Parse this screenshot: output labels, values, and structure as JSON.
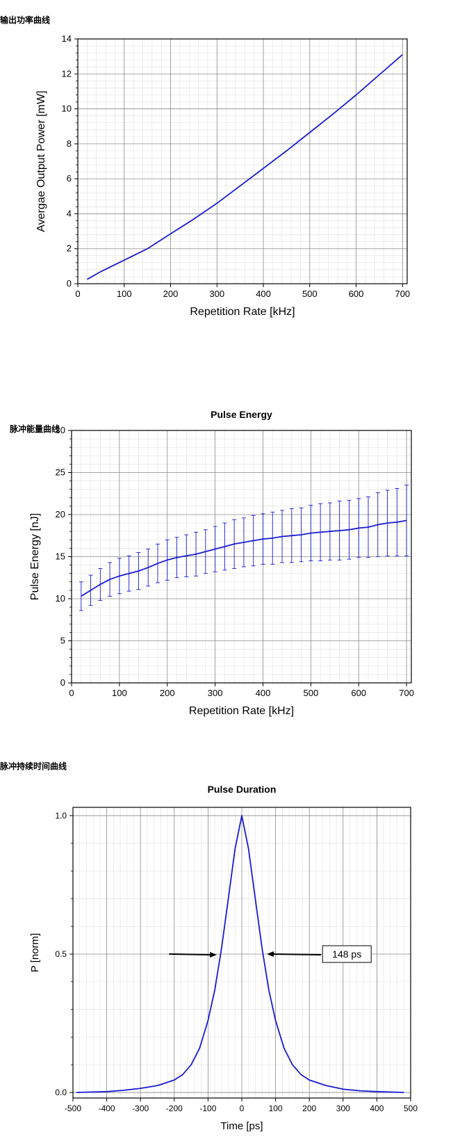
{
  "sections": {
    "power": "输出功率曲线",
    "energy": "脉冲能量曲线",
    "duration": "脉冲持续时间曲线"
  },
  "chart_data": [
    {
      "type": "line",
      "title": "",
      "xlabel": "Repetition Rate [kHz]",
      "ylabel": "Avergae Output Power [mW]",
      "xlim": [
        0,
        710
      ],
      "ylim": [
        0,
        14
      ],
      "xticks": [
        0,
        100,
        200,
        300,
        400,
        500,
        600,
        700
      ],
      "yticks": [
        0,
        2,
        4,
        6,
        8,
        10,
        12,
        14
      ],
      "grid": true,
      "color": "#1a1ad4",
      "series": [
        {
          "x": [
            20,
            50,
            100,
            150,
            200,
            250,
            300,
            350,
            400,
            450,
            500,
            550,
            600,
            650,
            700
          ],
          "y": [
            0.25,
            0.7,
            1.35,
            2.0,
            2.85,
            3.7,
            4.6,
            5.6,
            6.6,
            7.6,
            8.65,
            9.7,
            10.8,
            11.95,
            13.1
          ]
        }
      ]
    },
    {
      "type": "line",
      "title": "Pulse Energy",
      "xlabel": "Repetition Rate [kHz]",
      "ylabel": "Pulse Energy [nJ]",
      "xlim": [
        0,
        710
      ],
      "ylim": [
        0,
        30
      ],
      "xticks": [
        0,
        100,
        200,
        300,
        400,
        500,
        600,
        700
      ],
      "yticks": [
        0,
        5,
        10,
        15,
        20,
        25,
        30
      ],
      "grid": true,
      "color": "#1a1ad4",
      "series": [
        {
          "x": [
            20,
            40,
            60,
            80,
            100,
            120,
            140,
            160,
            180,
            200,
            220,
            240,
            260,
            280,
            300,
            320,
            340,
            360,
            380,
            400,
            420,
            440,
            460,
            480,
            500,
            520,
            540,
            560,
            580,
            600,
            620,
            640,
            660,
            680,
            700
          ],
          "y": [
            10.3,
            11.0,
            11.7,
            12.3,
            12.7,
            13.0,
            13.3,
            13.7,
            14.2,
            14.6,
            14.9,
            15.1,
            15.3,
            15.6,
            15.9,
            16.2,
            16.5,
            16.7,
            16.9,
            17.1,
            17.2,
            17.4,
            17.5,
            17.6,
            17.8,
            17.9,
            18.0,
            18.1,
            18.2,
            18.4,
            18.5,
            18.8,
            19.0,
            19.1,
            19.3
          ],
          "err": [
            1.7,
            1.8,
            1.9,
            2.0,
            2.1,
            2.1,
            2.2,
            2.2,
            2.3,
            2.4,
            2.4,
            2.5,
            2.6,
            2.6,
            2.7,
            2.8,
            2.9,
            2.9,
            3.0,
            3.0,
            3.1,
            3.1,
            3.2,
            3.2,
            3.3,
            3.4,
            3.4,
            3.5,
            3.5,
            3.5,
            3.6,
            3.8,
            3.9,
            4.0,
            4.2
          ]
        }
      ]
    },
    {
      "type": "line",
      "title": "Pulse Duration",
      "xlabel": "Time [ps]",
      "ylabel": "P [norm]",
      "xlim": [
        -500,
        500
      ],
      "ylim": [
        -0.02,
        1.03
      ],
      "xticks": [
        -500,
        -400,
        -300,
        -200,
        -100,
        0,
        100,
        200,
        300,
        400,
        500
      ],
      "yticks": [
        0.0,
        0.5,
        1.0
      ],
      "yticklabels": [
        "0.0",
        "0.5",
        "1.0"
      ],
      "grid": true,
      "color": "#1a1ad4",
      "fwhm_ps": 148,
      "annotation": "148 ps",
      "series": [
        {
          "x": [
            -490,
            -400,
            -350,
            -300,
            -250,
            -200,
            -175,
            -150,
            -125,
            -100,
            -80,
            -60,
            -40,
            -20,
            0,
            20,
            40,
            60,
            80,
            100,
            125,
            150,
            175,
            200,
            250,
            300,
            350,
            400,
            480
          ],
          "y": [
            0.0,
            0.003,
            0.008,
            0.015,
            0.025,
            0.045,
            0.065,
            0.1,
            0.16,
            0.26,
            0.37,
            0.52,
            0.7,
            0.88,
            1.0,
            0.88,
            0.7,
            0.52,
            0.37,
            0.26,
            0.16,
            0.1,
            0.065,
            0.045,
            0.025,
            0.012,
            0.006,
            0.003,
            0.0
          ]
        }
      ]
    }
  ]
}
